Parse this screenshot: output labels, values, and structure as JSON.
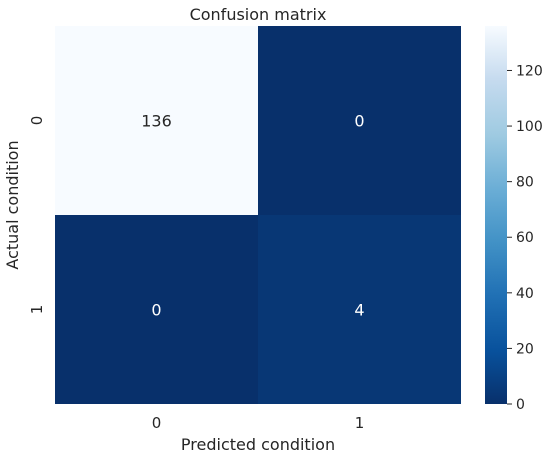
{
  "chart_data": {
    "type": "heatmap",
    "title": "Confusion matrix",
    "xlabel": "Predicted condition",
    "ylabel": "Actual condition",
    "x_categories": [
      "0",
      "1"
    ],
    "y_categories": [
      "0",
      "1"
    ],
    "values": [
      [
        136,
        0
      ],
      [
        0,
        4
      ]
    ],
    "colormap": "Blues_r",
    "colorbar": {
      "min": 0,
      "max": 136,
      "ticks": [
        0,
        20,
        40,
        60,
        80,
        100,
        120
      ],
      "placement": "right"
    },
    "colors": {
      "low": "#08306b",
      "high": "#f7fbff",
      "annotation_light": "#ffffff",
      "annotation_dark": "#262626"
    }
  }
}
